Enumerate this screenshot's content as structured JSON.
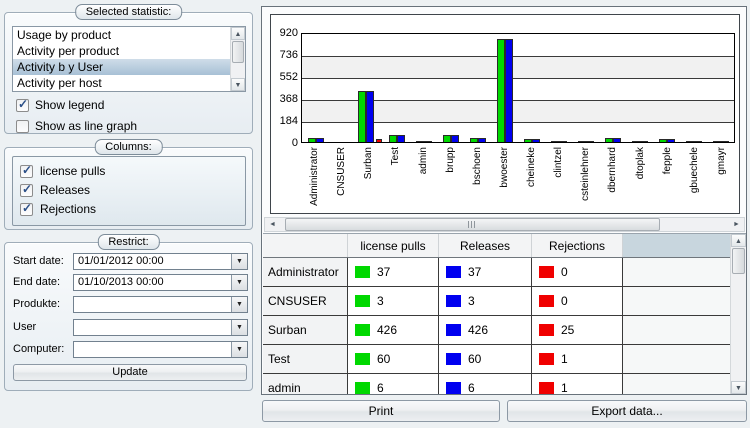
{
  "left_panel": {
    "statistic_group": {
      "title": "Selected statistic:",
      "items": [
        "Usage by product",
        "Activity per product",
        "Activity b y User",
        "Activity per host"
      ],
      "selected_index": 2,
      "show_legend": {
        "label": "Show legend",
        "checked": true
      },
      "show_line_graph": {
        "label": "Show as line graph",
        "checked": false
      }
    },
    "columns_group": {
      "title": "Columns:",
      "options": [
        {
          "label": "license pulls",
          "checked": true
        },
        {
          "label": "Releases",
          "checked": true
        },
        {
          "label": "Rejections",
          "checked": true
        }
      ]
    },
    "restrict_group": {
      "title": "Restrict:",
      "fields": [
        {
          "label": "Start date:",
          "value": "01/01/2012 00:00"
        },
        {
          "label": "End date:",
          "value": "01/10/2013 00:00"
        },
        {
          "label": "Produkte:",
          "value": ""
        },
        {
          "label": "User",
          "value": ""
        },
        {
          "label": "Computer:",
          "value": ""
        }
      ],
      "update_button": "Update"
    }
  },
  "chart_data": {
    "type": "bar",
    "title": "",
    "xlabel": "",
    "ylabel": "",
    "ylim": [
      0,
      920
    ],
    "yticks": [
      920,
      736,
      552,
      368,
      184,
      0
    ],
    "grid": true,
    "legend": false,
    "x_label_rotation": 90,
    "categories": [
      "Administrator",
      "CNSUSER",
      "Surban",
      "Test",
      "admin",
      "brupp",
      "bschoen",
      "bwoester",
      "cheineke",
      "clintzel",
      "csteinlehner",
      "dbernhard",
      "dtoplak",
      "fepple",
      "gbuechele",
      "gmayr"
    ],
    "series": [
      {
        "name": "license pulls",
        "color": "#00d800",
        "values": [
          37,
          3,
          426,
          60,
          6,
          55,
          35,
          860,
          22,
          10,
          6,
          35,
          6,
          22,
          8,
          8
        ]
      },
      {
        "name": "Releases",
        "color": "#0000f0",
        "values": [
          37,
          3,
          426,
          60,
          6,
          55,
          35,
          860,
          22,
          10,
          6,
          35,
          6,
          22,
          8,
          8
        ]
      },
      {
        "name": "Rejections",
        "color": "#f00000",
        "values": [
          0,
          0,
          25,
          1,
          1,
          0,
          0,
          0,
          0,
          0,
          0,
          0,
          0,
          0,
          0,
          0
        ]
      }
    ]
  },
  "table": {
    "columns": [
      "",
      "license pulls",
      "Releases",
      "Rejections"
    ],
    "swatch_colors": [
      "#00d800",
      "#0000f0",
      "#f00000"
    ],
    "rows": [
      {
        "name": "Administrator",
        "values": [
          37,
          37,
          0
        ]
      },
      {
        "name": "CNSUSER",
        "values": [
          3,
          3,
          0
        ]
      },
      {
        "name": "Surban",
        "values": [
          426,
          426,
          25
        ]
      },
      {
        "name": "Test",
        "values": [
          60,
          60,
          1
        ]
      },
      {
        "name": "admin",
        "values": [
          6,
          6,
          1
        ]
      }
    ]
  },
  "footer": {
    "print_button": "Print",
    "export_button": "Export data..."
  },
  "icons": {
    "dropdown": "▼",
    "scroll-up": "▲",
    "scroll-down": "▼",
    "scroll-left": "◄",
    "scroll-right": "►"
  }
}
